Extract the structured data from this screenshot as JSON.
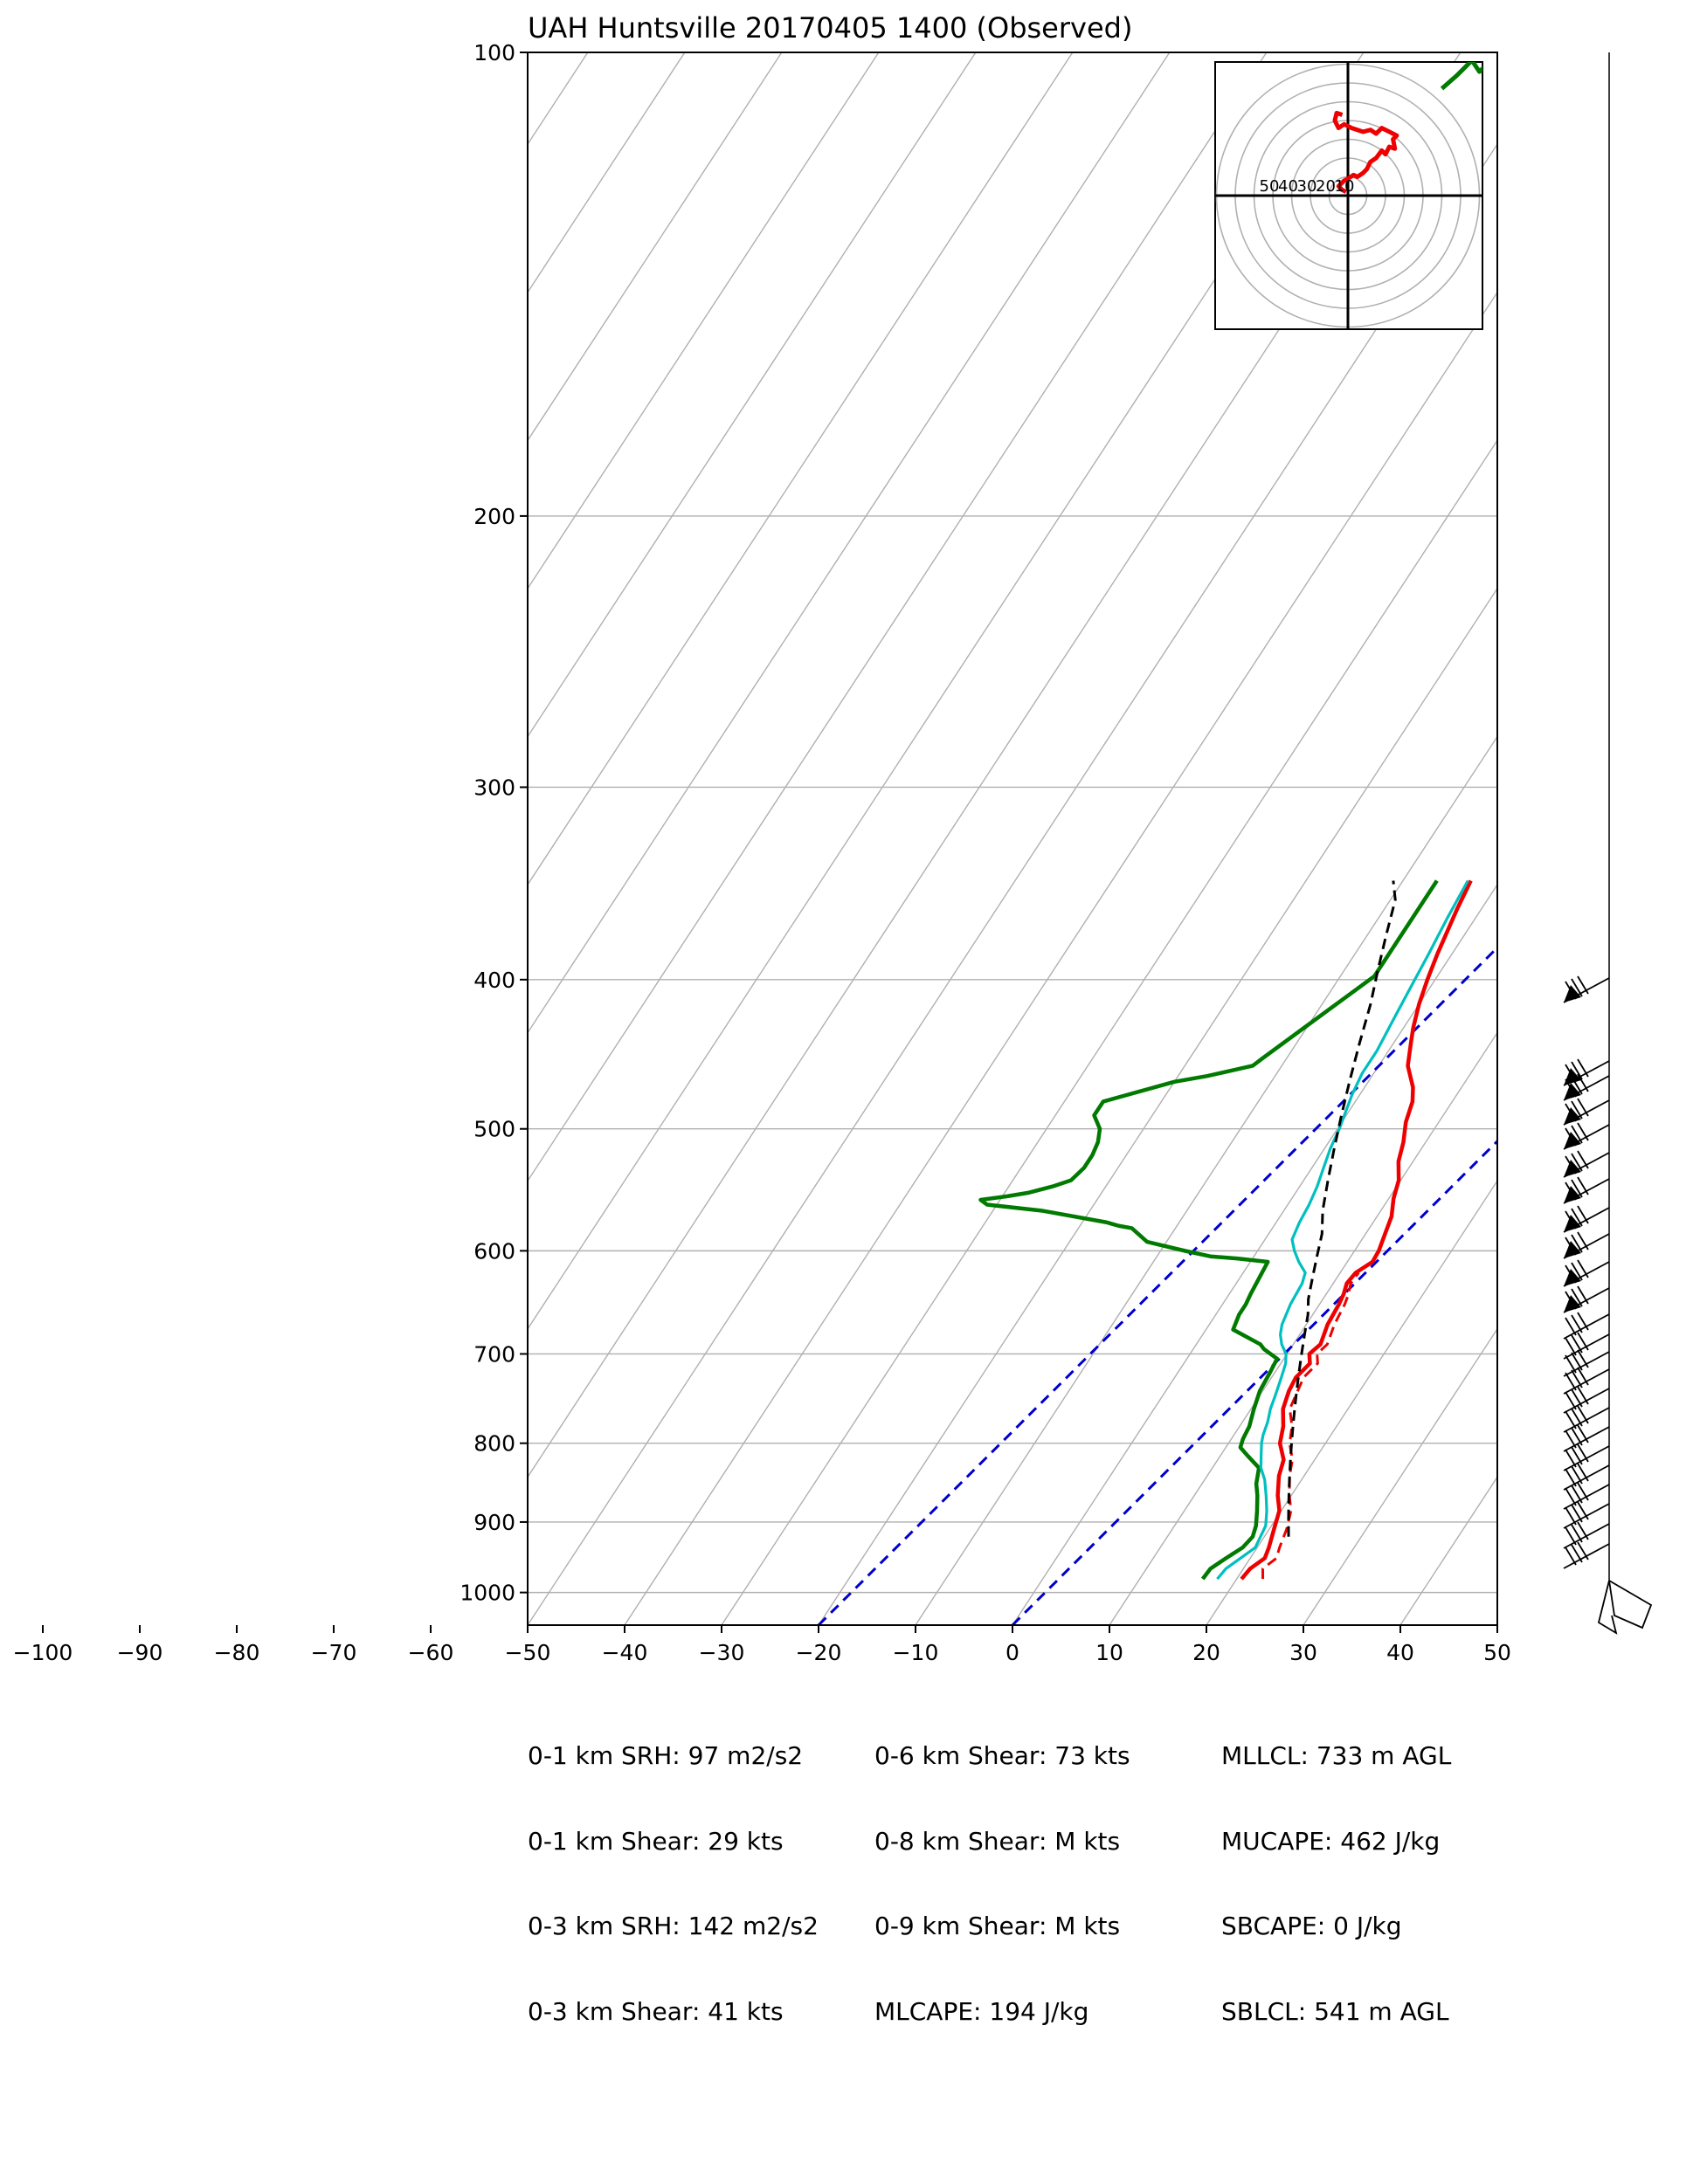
{
  "title": "UAH Huntsville 20170405 1400   (Observed)",
  "colors": {
    "temperature": "#ee0000",
    "dewpoint": "#007a00",
    "wetbulb": "#00bfbf",
    "parcel": "#000000",
    "virtual_temp": "#ee0000",
    "dry_adiabat_ref": "#0000cc",
    "grid": "#b0b0b0"
  },
  "chart_data": [
    {
      "type": "line",
      "kind": "skew-T log-p sounding",
      "title": "UAH Huntsville 20170405 1400   (Observed)",
      "xlabel": "",
      "ylabel": "",
      "x_range": [
        -50,
        50
      ],
      "x_ticks": [
        -100,
        -90,
        -80,
        -70,
        -60,
        -50,
        -40,
        -30,
        -20,
        -10,
        0,
        10,
        20,
        30,
        40,
        50
      ],
      "y_scale": "log",
      "y_range_hPa": [
        1050,
        100
      ],
      "y_ticks": [
        100,
        200,
        300,
        400,
        500,
        600,
        700,
        800,
        900,
        1000
      ],
      "grid": true,
      "series": [
        {
          "key": "temperature",
          "style": "solid",
          "points": [
            [
              20.5,
              980
            ],
            [
              20.7,
              965
            ],
            [
              21.5,
              950
            ],
            [
              21.2,
              935
            ],
            [
              20.5,
              910
            ],
            [
              19.8,
              885
            ],
            [
              18.6,
              865
            ],
            [
              17.4,
              840
            ],
            [
              16.8,
              820
            ],
            [
              15.3,
              800
            ],
            [
              14.5,
              780
            ],
            [
              13.3,
              760
            ],
            [
              12.7,
              740
            ],
            [
              12.5,
              725
            ],
            [
              13.0,
              710
            ],
            [
              12.3,
              700
            ],
            [
              12.8,
              690
            ],
            [
              12.2,
              670
            ],
            [
              12.0,
              650
            ],
            [
              11.8,
              640
            ],
            [
              11.4,
              630
            ],
            [
              11.6,
              620
            ],
            [
              12.6,
              610
            ],
            [
              12.5,
              600
            ],
            [
              12.0,
              585
            ],
            [
              11.5,
              570
            ],
            [
              10.5,
              555
            ],
            [
              9.8,
              540
            ],
            [
              8.5,
              525
            ],
            [
              7.7,
              510
            ],
            [
              6.6,
              495
            ],
            [
              5.9,
              480
            ],
            [
              5.0,
              470
            ],
            [
              3.0,
              455
            ],
            [
              1.8,
              440
            ],
            [
              1.0,
              430
            ],
            [
              0.0,
              415
            ],
            [
              -0.8,
              400
            ],
            [
              -1.5,
              385
            ],
            [
              -2.5,
              360
            ],
            [
              -3.0,
              345
            ]
          ]
        },
        {
          "key": "virtual_temp",
          "style": "dashed",
          "points": [
            [
              22.7,
              980
            ],
            [
              22.0,
              965
            ],
            [
              22.7,
              950
            ],
            [
              22.3,
              935
            ],
            [
              21.8,
              910
            ],
            [
              21.0,
              885
            ],
            [
              19.8,
              865
            ],
            [
              18.5,
              840
            ],
            [
              17.7,
              820
            ],
            [
              16.3,
              800
            ],
            [
              15.4,
              780
            ],
            [
              14.0,
              760
            ],
            [
              13.6,
              740
            ],
            [
              13.3,
              725
            ],
            [
              13.8,
              710
            ],
            [
              13.1,
              700
            ],
            [
              13.5,
              690
            ],
            [
              12.9,
              670
            ],
            [
              12.6,
              650
            ],
            [
              12.3,
              640
            ],
            [
              11.8,
              630
            ],
            [
              11.9,
              620
            ]
          ]
        },
        {
          "key": "dewpoint",
          "style": "solid",
          "points": [
            [
              16.5,
              980
            ],
            [
              16.6,
              965
            ],
            [
              17.5,
              950
            ],
            [
              18.5,
              935
            ],
            [
              18.8,
              920
            ],
            [
              18.4,
              905
            ],
            [
              17.5,
              885
            ],
            [
              16.5,
              865
            ],
            [
              15.6,
              850
            ],
            [
              14.8,
              830
            ],
            [
              12.8,
              815
            ],
            [
              11.5,
              805
            ],
            [
              11.2,
              795
            ],
            [
              11.0,
              780
            ],
            [
              10.3,
              760
            ],
            [
              9.7,
              740
            ],
            [
              9.5,
              720
            ],
            [
              9.3,
              705
            ],
            [
              7.3,
              695
            ],
            [
              6.6,
              690
            ],
            [
              2.8,
              675
            ],
            [
              2.4,
              660
            ],
            [
              2.4,
              650
            ],
            [
              2.2,
              640
            ],
            [
              2.0,
              625
            ],
            [
              1.8,
              610
            ],
            [
              -1.5,
              607
            ],
            [
              -4.5,
              605
            ],
            [
              -7.5,
              600
            ],
            [
              -12.0,
              592
            ],
            [
              -14.5,
              580
            ],
            [
              -16.0,
              578
            ],
            [
              -17.5,
              575
            ],
            [
              -25.0,
              565
            ],
            [
              -31.0,
              560
            ],
            [
              -32.0,
              556
            ],
            [
              -29.5,
              553
            ],
            [
              -27.5,
              550
            ],
            [
              -25.5,
              545
            ],
            [
              -24.0,
              540
            ],
            [
              -23.5,
              530
            ],
            [
              -23.5,
              520
            ],
            [
              -23.8,
              510
            ],
            [
              -24.5,
              500
            ],
            [
              -26.0,
              490
            ],
            [
              -26.0,
              480
            ],
            [
              -20.0,
              466
            ],
            [
              -17.0,
              462
            ],
            [
              -13.0,
              455
            ],
            [
              -12.5,
              450
            ],
            [
              -6.5,
              398
            ],
            [
              -6.5,
              345
            ]
          ]
        },
        {
          "key": "wetbulb",
          "style": "solid",
          "points": [
            [
              18.0,
              980
            ],
            [
              18.2,
              965
            ],
            [
              19.0,
              950
            ],
            [
              19.8,
              935
            ],
            [
              19.4,
              905
            ],
            [
              18.5,
              885
            ],
            [
              17.4,
              865
            ],
            [
              16.2,
              845
            ],
            [
              15.0,
              830
            ],
            [
              14.2,
              815
            ],
            [
              13.4,
              800
            ],
            [
              13.0,
              790
            ],
            [
              12.6,
              775
            ],
            [
              12.0,
              760
            ],
            [
              11.6,
              745
            ],
            [
              11.0,
              725
            ],
            [
              10.5,
              710
            ],
            [
              9.9,
              700
            ],
            [
              8.8,
              690
            ],
            [
              8.0,
              680
            ],
            [
              7.5,
              670
            ],
            [
              7.0,
              650
            ],
            [
              6.8,
              630
            ],
            [
              6.4,
              620
            ],
            [
              5.0,
              610
            ],
            [
              3.8,
              600
            ],
            [
              2.8,
              590
            ],
            [
              2.4,
              575
            ],
            [
              2.2,
              560
            ],
            [
              1.8,
              545
            ],
            [
              1.2,
              530
            ],
            [
              0.6,
              515
            ],
            [
              0.2,
              500
            ],
            [
              -0.2,
              490
            ],
            [
              -0.8,
              475
            ],
            [
              -1.2,
              460
            ],
            [
              -1.2,
              445
            ],
            [
              -1.6,
              425
            ],
            [
              -2.0,
              405
            ],
            [
              -2.4,
              385
            ],
            [
              -2.9,
              365
            ],
            [
              -3.3,
              345
            ]
          ]
        },
        {
          "key": "parcel",
          "style": "dashed",
          "points": [
            [
              22.5,
              920
            ],
            [
              21.5,
              900
            ],
            [
              20.5,
              880
            ],
            [
              19.5,
              860
            ],
            [
              18.5,
              840
            ],
            [
              17.5,
              820
            ],
            [
              16.5,
              800
            ],
            [
              15.5,
              780
            ],
            [
              14.5,
              760
            ],
            [
              13.5,
              740
            ],
            [
              12.5,
              720
            ],
            [
              11.5,
              700
            ],
            [
              10.5,
              680
            ],
            [
              9.5,
              660
            ],
            [
              8.5,
              645
            ],
            [
              7.5,
              625
            ],
            [
              6.5,
              605
            ],
            [
              5.5,
              585
            ],
            [
              4.0,
              565
            ],
            [
              2.5,
              540
            ],
            [
              1.0,
              515
            ],
            [
              -0.5,
              490
            ],
            [
              -2.0,
              465
            ],
            [
              -3.5,
              440
            ],
            [
              -5.0,
              415
            ],
            [
              -6.5,
              395
            ],
            [
              -8.0,
              375
            ],
            [
              -9.5,
              355
            ],
            [
              -11.0,
              345
            ]
          ]
        }
      ],
      "reference_lines": [
        {
          "key": "dry_adiabat_ref",
          "style": "dashed",
          "points": [
            [
              -20,
              1050
            ],
            [
              10,
              300
            ],
            [
              30,
              100
            ]
          ]
        },
        {
          "key": "dry_adiabat_ref",
          "style": "dashed",
          "points": [
            [
              0,
              1050
            ],
            [
              30,
              300
            ],
            [
              50,
              100
            ]
          ]
        }
      ]
    },
    {
      "type": "line",
      "kind": "hodograph",
      "ring_labels": [
        "50",
        "40",
        "30",
        "20",
        "10"
      ],
      "ring_step": 10,
      "ring_max": 70,
      "grid": true,
      "series": [
        {
          "key": "temperature",
          "u_v": [
            [
              -1,
              2
            ],
            [
              -3,
              3
            ],
            [
              -5,
              5
            ],
            [
              -2,
              8
            ],
            [
              0,
              9
            ],
            [
              3,
              11
            ],
            [
              5,
              10
            ],
            [
              8,
              12
            ],
            [
              10,
              14
            ],
            [
              12,
              18
            ],
            [
              15,
              20
            ],
            [
              18,
              24
            ],
            [
              20,
              22
            ],
            [
              22,
              26
            ],
            [
              25,
              25
            ],
            [
              24,
              30
            ],
            [
              26,
              32
            ],
            [
              22,
              34
            ],
            [
              18,
              36
            ],
            [
              15,
              33
            ],
            [
              12,
              35
            ],
            [
              8,
              34
            ],
            [
              5,
              35
            ],
            [
              2,
              36
            ],
            [
              -2,
              38
            ],
            [
              -5,
              36
            ],
            [
              -7,
              40
            ],
            [
              -6,
              44
            ],
            [
              -3,
              43
            ]
          ]
        },
        {
          "key": "dewpoint",
          "u_v": [
            [
              50,
              57
            ],
            [
              58,
              64
            ],
            [
              62,
              68
            ],
            [
              66,
              72
            ],
            [
              70,
              66
            ],
            [
              74,
              70
            ],
            [
              78,
              66
            ]
          ]
        }
      ]
    }
  ],
  "stats": {
    "col1": [
      "0-1 km SRH: 97 m2/s2",
      "0-1 km Shear: 29 kts",
      "0-3 km SRH: 142 m2/s2",
      "0-3 km Shear: 41 kts"
    ],
    "col2": [
      "0-6 km Shear: 73 kts",
      "0-8 km Shear: M kts",
      "0-9 km Shear: M kts",
      "MLCAPE: 194 J/kg"
    ],
    "col3": [
      "MLLCL: 733 m AGL",
      "MUCAPE: 462 J/kg",
      "SBCAPE: 0 J/kg",
      "SBLCL: 541 m AGL"
    ]
  }
}
